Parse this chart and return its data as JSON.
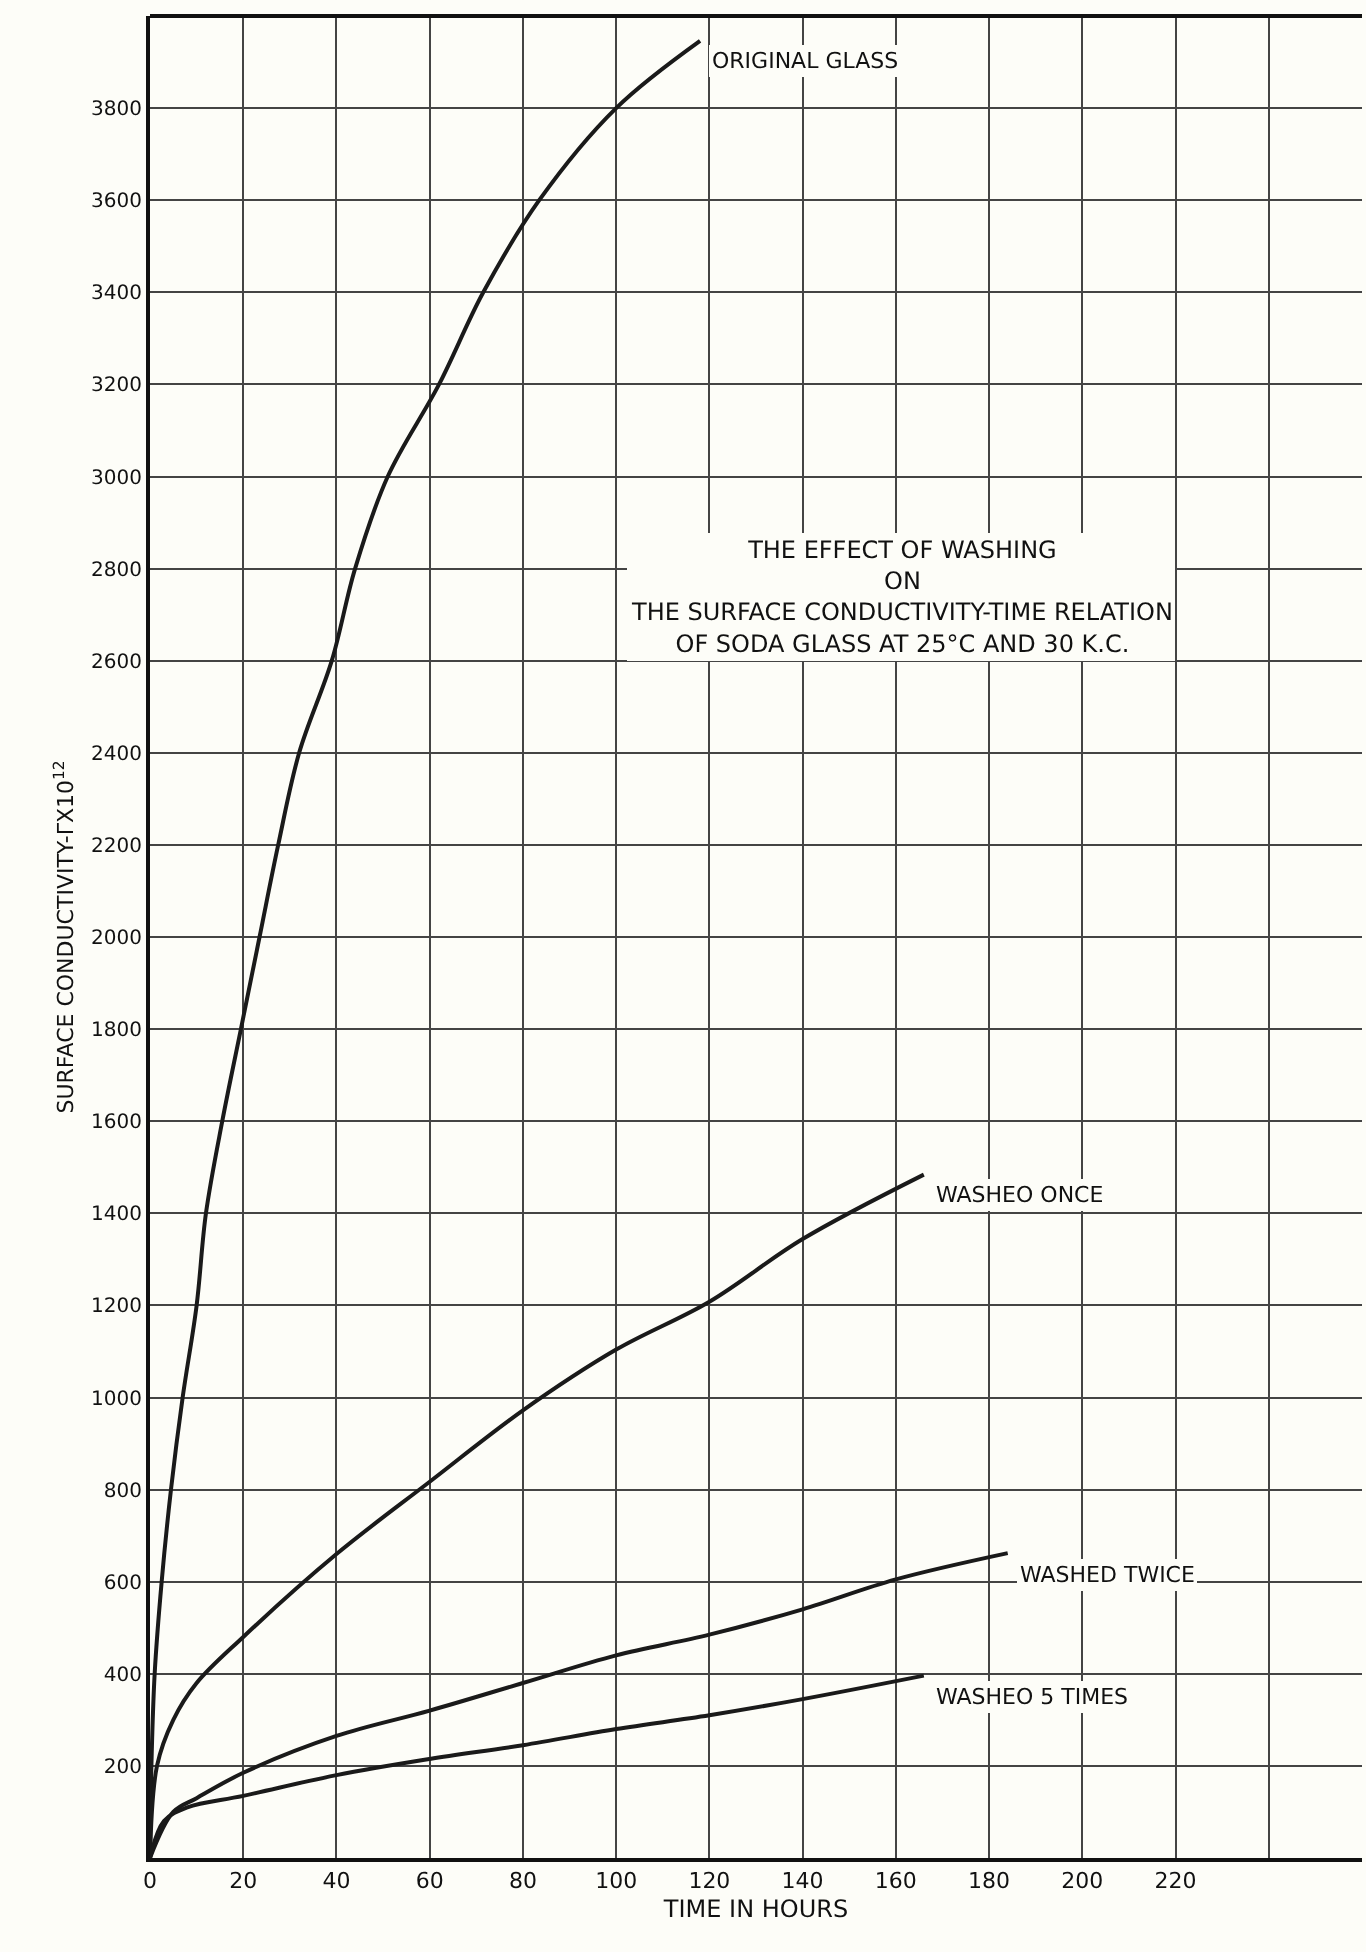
{
  "chart_data": {
    "type": "line",
    "title": "THE EFFECT OF WASHING\nON\nTHE SURFACE CONDUCTIVITY-TIME RELATION\nOF SODA GLASS AT 25°C AND 30 K.C.",
    "xlabel": "TIME IN HOURS",
    "ylabel": "SURFACE CONDUCTIVITY-ΓX10$^{12}$",
    "series": [
      {
        "name": "ORIGINAL GLASS",
        "color": "#1a1a1a",
        "x": [
          0,
          0.3,
          1,
          2.5,
          4.5,
          7,
          10,
          12,
          15.5,
          19.5,
          23.5,
          27.5,
          32,
          39,
          44,
          51,
          62,
          71.5,
          83.5,
          100,
          118
        ],
        "values": [
          0,
          200,
          400,
          600,
          800,
          1000,
          1200,
          1400,
          1600,
          1800,
          2000,
          2200,
          2400,
          2600,
          2800,
          3000,
          3200,
          3400,
          3600,
          3800,
          3946
        ]
      },
      {
        "name": "WASHEO ONCE",
        "color": "#1a1a1a",
        "x": [
          0,
          1.5,
          5,
          10,
          20,
          40,
          60,
          80,
          100,
          120,
          140,
          166
        ],
        "values": [
          0,
          200,
          300,
          380,
          480,
          660,
          817,
          972,
          1104,
          1208,
          1344,
          1484
        ]
      },
      {
        "name": "WASHED TWICE",
        "color": "#1a1a1a",
        "x": [
          0,
          5,
          10,
          20,
          40,
          60,
          80,
          100,
          120,
          140,
          160,
          184
        ],
        "values": [
          0,
          100,
          130,
          185,
          265,
          320,
          380,
          440,
          485,
          540,
          605,
          662
        ]
      },
      {
        "name": "WASHEO 5 TIMES",
        "color": "#1a1a1a",
        "x": [
          0,
          3,
          8,
          20,
          40,
          60,
          80,
          100,
          120,
          140,
          166
        ],
        "values": [
          0,
          80,
          110,
          135,
          180,
          215,
          245,
          280,
          310,
          345,
          396
        ]
      }
    ],
    "xlim": [
      0,
      260
    ],
    "ylim": [
      0,
      4000
    ],
    "xticks": [
      0,
      20,
      40,
      60,
      80,
      100,
      120,
      140,
      160,
      180,
      200,
      220,
      {
        "value": 240,
        "label": null
      },
      {
        "value": 260,
        "label": null
      }
    ],
    "yticks": [
      200,
      400,
      600,
      800,
      1000,
      1200,
      1400,
      1600,
      1800,
      2000,
      2200,
      2400,
      2600,
      2800,
      3000,
      3200,
      3400,
      3600,
      3800
    ],
    "grid": true,
    "legend": false,
    "marker": "none",
    "line_style": "solid"
  }
}
